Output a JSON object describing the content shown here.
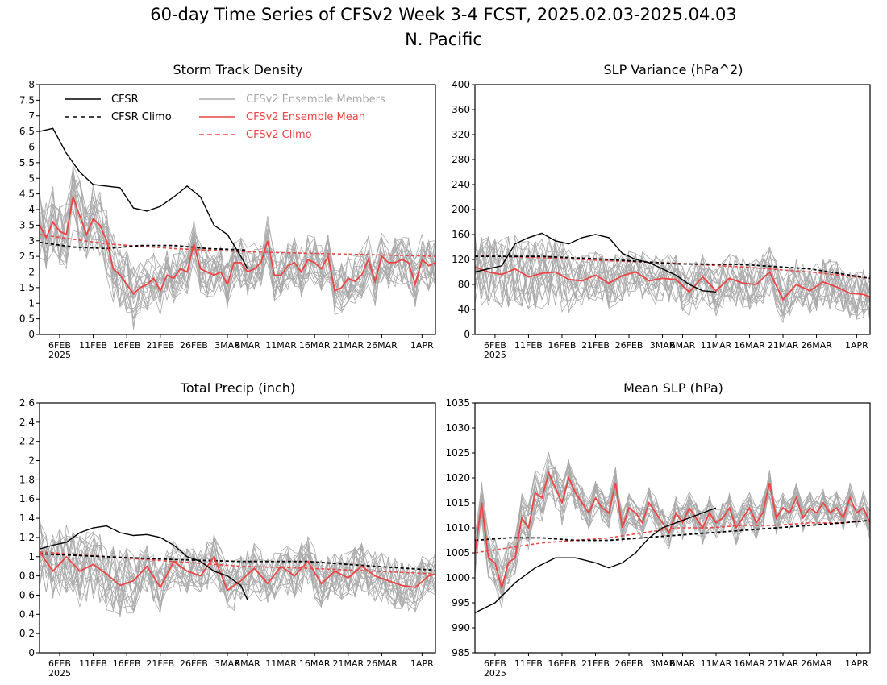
{
  "figure": {
    "title": "60-day Time Series of CFSv2 Week 3-4 FCST, 2025.02.03-2025.04.03",
    "subtitle": "N. Pacific"
  },
  "legend": {
    "cfsr": "CFSR",
    "cfsr_climo": "CFSR Climo",
    "ens_members": "CFSv2 Ensemble Members",
    "ens_mean": "CFSv2 Ensemble Mean",
    "cfsv2_climo": "CFSv2 Climo"
  },
  "colors": {
    "cfsr": "#000000",
    "ens_member": "#aaaaaa",
    "ens_mean": "#ee4444",
    "axis": "#000000"
  },
  "x_axis": {
    "dates": [
      "6FEB",
      "11FEB",
      "16FEB",
      "21FEB",
      "26FEB",
      "3MAR",
      "6MAR",
      "11MAR",
      "16MAR",
      "21MAR",
      "26MAR",
      "1APR"
    ],
    "year": "2025"
  },
  "chart_data": [
    {
      "type": "line",
      "title": "Storm Track Density",
      "ylim": [
        0,
        8
      ],
      "yticks": [
        "0",
        "0.5",
        "1",
        "1.5",
        "2",
        "2.5",
        "3",
        "3.5",
        "4",
        "4.5",
        "5",
        "5.5",
        "6",
        "6.5",
        "7",
        "7.5",
        "8"
      ],
      "ensemble_members": 20,
      "series": [
        {
          "name": "CFSR",
          "key": "cfsr",
          "x": [
            0,
            2,
            4,
            6,
            8,
            10,
            12,
            14,
            16,
            18,
            20,
            22,
            24,
            26,
            28,
            30,
            31
          ],
          "y": [
            6.5,
            6.6,
            5.8,
            5.2,
            4.8,
            4.75,
            4.7,
            4.05,
            3.95,
            4.1,
            4.4,
            4.75,
            4.4,
            3.5,
            3.2,
            2.5,
            2.1
          ]
        },
        {
          "name": "CFSR Climo",
          "key": "cfsr_climo",
          "x": [
            0,
            5,
            10,
            15,
            20,
            25,
            31
          ],
          "y": [
            2.95,
            2.8,
            2.75,
            2.85,
            2.85,
            2.75,
            2.7
          ]
        },
        {
          "name": "CFSv2 Ensemble Mean",
          "key": "ens_mean",
          "x": [
            0,
            1,
            2,
            3,
            4,
            5,
            6,
            7,
            8,
            9,
            10,
            11,
            12,
            13,
            14,
            15,
            16,
            17,
            18,
            19,
            20,
            21,
            22,
            23,
            24,
            25,
            26,
            27,
            28,
            29,
            30,
            31,
            32,
            33,
            34,
            35,
            36,
            37,
            38,
            39,
            40,
            41,
            42,
            43,
            44,
            45,
            46,
            47,
            48,
            49,
            50,
            51,
            52,
            53,
            54,
            55,
            56,
            57,
            58,
            59
          ],
          "y": [
            3.5,
            3.1,
            3.6,
            3.3,
            3.2,
            4.4,
            3.8,
            3.2,
            3.7,
            3.5,
            3.0,
            2.1,
            1.9,
            1.6,
            1.3,
            1.5,
            1.6,
            1.8,
            1.4,
            1.9,
            1.8,
            2.1,
            2.0,
            2.9,
            2.1,
            2.0,
            1.9,
            2.0,
            1.6,
            2.3,
            2.3,
            2.0,
            2.1,
            2.3,
            3.0,
            1.9,
            1.9,
            2.2,
            2.3,
            2.0,
            2.4,
            2.3,
            2.1,
            2.5,
            1.4,
            1.5,
            1.8,
            1.7,
            1.9,
            2.4,
            1.7,
            2.5,
            2.3,
            2.3,
            2.4,
            2.3,
            1.6,
            2.4,
            2.2,
            2.3
          ]
        },
        {
          "name": "CFSv2 Climo",
          "key": "cfsv2_climo",
          "x": [
            0,
            10,
            20,
            30,
            40,
            50,
            59
          ],
          "y": [
            3.2,
            2.9,
            2.75,
            2.65,
            2.6,
            2.55,
            2.5
          ]
        }
      ]
    },
    {
      "type": "line",
      "title": "SLP Variance (hPa^2)",
      "ylim": [
        0,
        400
      ],
      "yticks": [
        "0",
        "40",
        "80",
        "120",
        "160",
        "200",
        "240",
        "280",
        "320",
        "360",
        "400"
      ],
      "ensemble_members": 20,
      "series": [
        {
          "name": "CFSR",
          "key": "cfsr",
          "x": [
            0,
            2,
            4,
            6,
            8,
            10,
            12,
            14,
            16,
            18,
            20,
            22,
            24,
            26,
            28,
            30,
            32,
            34,
            36
          ],
          "y": [
            100,
            105,
            110,
            145,
            155,
            162,
            150,
            145,
            155,
            160,
            155,
            130,
            120,
            115,
            105,
            95,
            80,
            70,
            68
          ]
        },
        {
          "name": "CFSR Climo",
          "key": "cfsr_climo",
          "x": [
            0,
            10,
            20,
            30,
            40,
            50,
            59
          ],
          "y": [
            125,
            125,
            120,
            113,
            112,
            105,
            90
          ]
        },
        {
          "name": "CFSv2 Ensemble Mean",
          "key": "ens_mean",
          "x": [
            0,
            2,
            4,
            6,
            8,
            10,
            12,
            14,
            16,
            18,
            20,
            22,
            24,
            26,
            28,
            30,
            32,
            34,
            36,
            38,
            40,
            42,
            44,
            46,
            48,
            50,
            52,
            54,
            56,
            58,
            59
          ],
          "y": [
            108,
            100,
            96,
            105,
            92,
            98,
            100,
            88,
            86,
            95,
            82,
            94,
            100,
            86,
            90,
            88,
            68,
            92,
            70,
            90,
            82,
            80,
            100,
            56,
            80,
            70,
            84,
            76,
            66,
            64,
            60
          ]
        },
        {
          "name": "CFSv2 Climo",
          "key": "cfsv2_climo",
          "x": [
            0,
            10,
            20,
            30,
            40,
            50,
            59
          ],
          "y": [
            126,
            123,
            118,
            114,
            108,
            100,
            90
          ]
        }
      ]
    },
    {
      "type": "line",
      "title": "Total Precip (inch)",
      "ylim": [
        0,
        2.6
      ],
      "yticks": [
        "0",
        "0.2",
        "0.4",
        "0.6",
        "0.8",
        "1",
        "1.2",
        "1.4",
        "1.6",
        "1.8",
        "2",
        "2.2",
        "2.4",
        "2.6"
      ],
      "ensemble_members": 20,
      "series": [
        {
          "name": "CFSR",
          "key": "cfsr",
          "x": [
            0,
            2,
            4,
            6,
            8,
            10,
            12,
            14,
            16,
            18,
            20,
            22,
            24,
            26,
            28,
            30,
            31
          ],
          "y": [
            1.08,
            1.12,
            1.15,
            1.25,
            1.3,
            1.32,
            1.25,
            1.22,
            1.23,
            1.2,
            1.12,
            1.0,
            0.95,
            0.85,
            0.8,
            0.7,
            0.55
          ]
        },
        {
          "name": "CFSR Climo",
          "key": "cfsr_climo",
          "x": [
            0,
            10,
            20,
            30,
            40,
            50,
            59
          ],
          "y": [
            1.03,
            1.0,
            0.97,
            0.95,
            0.95,
            0.9,
            0.86
          ]
        },
        {
          "name": "CFSv2 Ensemble Mean",
          "key": "ens_mean",
          "x": [
            0,
            2,
            4,
            6,
            8,
            10,
            12,
            14,
            16,
            18,
            20,
            22,
            24,
            26,
            28,
            30,
            32,
            34,
            36,
            38,
            40,
            42,
            44,
            46,
            48,
            50,
            52,
            54,
            56,
            58,
            59
          ],
          "y": [
            1.05,
            0.85,
            1.0,
            0.85,
            0.92,
            0.82,
            0.7,
            0.75,
            0.9,
            0.68,
            0.95,
            0.85,
            0.8,
            1.0,
            0.65,
            0.75,
            0.88,
            0.72,
            0.9,
            0.8,
            0.95,
            0.72,
            0.85,
            0.78,
            0.9,
            0.8,
            0.75,
            0.7,
            0.68,
            0.8,
            0.82
          ]
        },
        {
          "name": "CFSv2 Climo",
          "key": "cfsv2_climo",
          "x": [
            0,
            10,
            20,
            30,
            40,
            50,
            59
          ],
          "y": [
            1.05,
            1.0,
            0.95,
            0.9,
            0.88,
            0.85,
            0.82
          ]
        }
      ]
    },
    {
      "type": "line",
      "title": "Mean SLP (hPa)",
      "ylim": [
        985,
        1035
      ],
      "yticks": [
        "985",
        "990",
        "995",
        "1000",
        "1005",
        "1010",
        "1015",
        "1020",
        "1025",
        "1030",
        "1035"
      ],
      "ensemble_members": 20,
      "series": [
        {
          "name": "CFSR",
          "key": "cfsr",
          "x": [
            0,
            3,
            6,
            9,
            12,
            15,
            18,
            20,
            22,
            24,
            26,
            28,
            30,
            32,
            34,
            36
          ],
          "y": [
            993,
            995,
            999,
            1002,
            1004,
            1004,
            1003,
            1002,
            1003,
            1005,
            1008,
            1010,
            1011,
            1012,
            1013,
            1014
          ]
        },
        {
          "name": "CFSR Climo",
          "key": "cfsr_climo",
          "x": [
            0,
            5,
            10,
            15,
            20,
            25,
            30,
            35,
            40,
            45,
            50,
            55,
            59
          ],
          "y": [
            1007.5,
            1008,
            1008,
            1007.5,
            1007.5,
            1008,
            1008.5,
            1009,
            1009.5,
            1010,
            1010.5,
            1011,
            1011.5
          ]
        },
        {
          "name": "CFSv2 Ensemble Mean",
          "key": "ens_mean",
          "x": [
            0,
            1,
            2,
            3,
            4,
            5,
            6,
            7,
            8,
            9,
            10,
            11,
            12,
            13,
            14,
            15,
            16,
            17,
            18,
            19,
            20,
            21,
            22,
            23,
            24,
            25,
            26,
            27,
            28,
            29,
            30,
            31,
            32,
            33,
            34,
            35,
            36,
            37,
            38,
            39,
            40,
            41,
            42,
            43,
            44,
            45,
            46,
            47,
            48,
            49,
            50,
            51,
            52,
            53,
            54,
            55,
            56,
            57,
            58,
            59
          ],
          "y": [
            1005,
            1015,
            1004,
            1003,
            998,
            1003,
            1004,
            1012,
            1010,
            1017,
            1016,
            1021,
            1018,
            1015,
            1020,
            1017,
            1015,
            1013,
            1016,
            1014,
            1013,
            1019,
            1010,
            1014,
            1013,
            1011,
            1015,
            1013,
            1011,
            1009,
            1013,
            1011,
            1014,
            1012,
            1010,
            1013,
            1011,
            1012,
            1014,
            1010,
            1012,
            1014,
            1011,
            1013,
            1019,
            1012,
            1014,
            1013,
            1016,
            1012,
            1014,
            1013,
            1015,
            1013,
            1014,
            1012,
            1016,
            1013,
            1014,
            1011
          ]
        },
        {
          "name": "CFSv2 Climo",
          "key": "cfsv2_climo",
          "x": [
            0,
            5,
            10,
            15,
            20,
            25,
            30,
            35,
            40,
            45,
            50,
            55,
            59
          ],
          "y": [
            1005,
            1006,
            1007,
            1007.5,
            1008,
            1009,
            1010,
            1010,
            1010.5,
            1010.5,
            1011,
            1011,
            1011.5
          ]
        }
      ]
    }
  ]
}
